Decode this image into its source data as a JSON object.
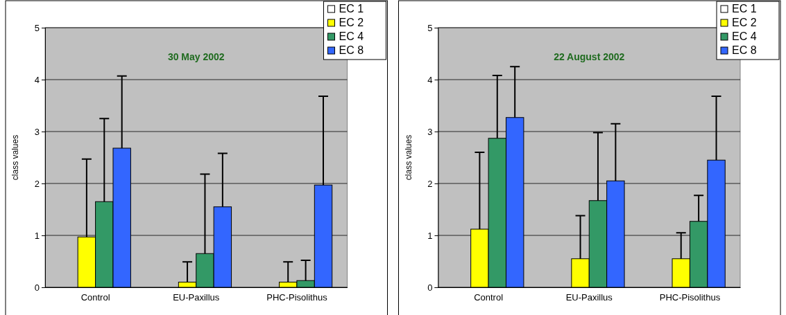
{
  "chart_data": [
    {
      "type": "bar",
      "title": "30 May 2002",
      "ylabel": "class values",
      "categories": [
        "Control",
        "EU-Paxillus",
        "PHC-Pisolithus"
      ],
      "ylim": [
        0,
        5
      ],
      "yticks": [
        0,
        1,
        2,
        3,
        4,
        5
      ],
      "grid": "y",
      "legend": "top right",
      "series": [
        {
          "name": "EC 1",
          "color": "#ffffff",
          "values": [
            0,
            0,
            0
          ]
        },
        {
          "name": "EC 2",
          "color": "#ffff00",
          "values": [
            0.97,
            0.1,
            0.1
          ],
          "errors": [
            [
              0.97,
              2.47
            ],
            [
              0.1,
              0.49
            ],
            [
              0.1,
              0.49
            ]
          ]
        },
        {
          "name": "EC 4",
          "color": "#339966",
          "values": [
            1.65,
            0.65,
            0.13
          ],
          "errors": [
            [
              1.65,
              3.25
            ],
            [
              0.65,
              2.18
            ],
            [
              0.13,
              0.52
            ]
          ]
        },
        {
          "name": "EC 8",
          "color": "#3366ff",
          "values": [
            2.68,
            1.55,
            1.97
          ],
          "errors": [
            [
              2.68,
              4.07
            ],
            [
              1.55,
              2.58
            ],
            [
              1.97,
              3.68
            ]
          ]
        }
      ]
    },
    {
      "type": "bar",
      "title": "22 August 2002",
      "ylabel": "class values",
      "categories": [
        "Control",
        "EU-Paxillus",
        "PHC-Pisolithus"
      ],
      "ylim": [
        0,
        5
      ],
      "yticks": [
        0,
        1,
        2,
        3,
        4,
        5
      ],
      "grid": "y",
      "legend": "top right",
      "series": [
        {
          "name": "EC 1",
          "color": "#ffffff",
          "values": [
            0,
            0,
            0
          ]
        },
        {
          "name": "EC 2",
          "color": "#ffff00",
          "values": [
            1.12,
            0.55,
            0.55
          ],
          "errors": [
            [
              1.12,
              2.6
            ],
            [
              0.55,
              1.38
            ],
            [
              0.55,
              1.05
            ]
          ]
        },
        {
          "name": "EC 4",
          "color": "#339966",
          "values": [
            2.87,
            1.67,
            1.27
          ],
          "errors": [
            [
              2.87,
              4.08
            ],
            [
              1.67,
              2.98
            ],
            [
              1.27,
              1.77
            ]
          ]
        },
        {
          "name": "EC 8",
          "color": "#3366ff",
          "values": [
            3.27,
            2.05,
            2.45
          ],
          "errors": [
            [
              3.27,
              4.25
            ],
            [
              2.05,
              3.15
            ],
            [
              2.45,
              3.68
            ]
          ]
        }
      ]
    }
  ]
}
